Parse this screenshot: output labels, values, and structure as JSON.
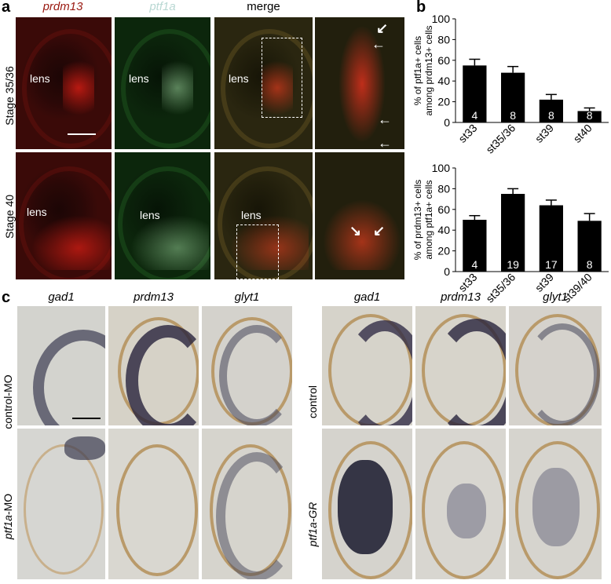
{
  "panel_a": {
    "letter": "a",
    "columns": [
      "prdm13",
      "ptf1a",
      "merge"
    ],
    "rows": [
      "Stage 35/36",
      "Stage 40"
    ],
    "lens_label": "lens"
  },
  "panel_b": {
    "letter": "b"
  },
  "panel_c": {
    "letter": "c",
    "left_columns": [
      "gad1",
      "prdm13",
      "glyt1"
    ],
    "right_columns": [
      "gad1",
      "prdm13",
      "glyt1"
    ],
    "left_rows": {
      "row1": "control-MO",
      "row2_gene": "ptf1a",
      "row2_suffix": "-MO"
    },
    "right_rows": {
      "row1": "control",
      "row2": "ptf1a-GR"
    }
  },
  "chart_data": [
    {
      "type": "bar",
      "categories": [
        "st33",
        "st35/36",
        "st39",
        "st40"
      ],
      "values": [
        55,
        48,
        22,
        11
      ],
      "errors": [
        6,
        6,
        5,
        3
      ],
      "n_labels": [
        "4",
        "8",
        "8",
        "8"
      ],
      "ylabel_line1": "% of ptf1a+ cells",
      "ylabel_line2": "among prdm13+ cells",
      "ylim": [
        0,
        100
      ],
      "yticks": [
        0,
        20,
        40,
        60,
        80,
        100
      ],
      "bar_color": "#000000"
    },
    {
      "type": "bar",
      "categories": [
        "st33",
        "st35/36",
        "st39",
        "st39/40"
      ],
      "values": [
        50,
        75,
        64,
        49
      ],
      "errors": [
        4,
        5,
        5,
        7
      ],
      "n_labels": [
        "4",
        "19",
        "17",
        "8"
      ],
      "ylabel_line1": "% of prdm13+ cells",
      "ylabel_line2": "among ptf1a+ cells",
      "ylim": [
        0,
        100
      ],
      "yticks": [
        0,
        20,
        40,
        60,
        80,
        100
      ],
      "bar_color": "#000000"
    }
  ]
}
